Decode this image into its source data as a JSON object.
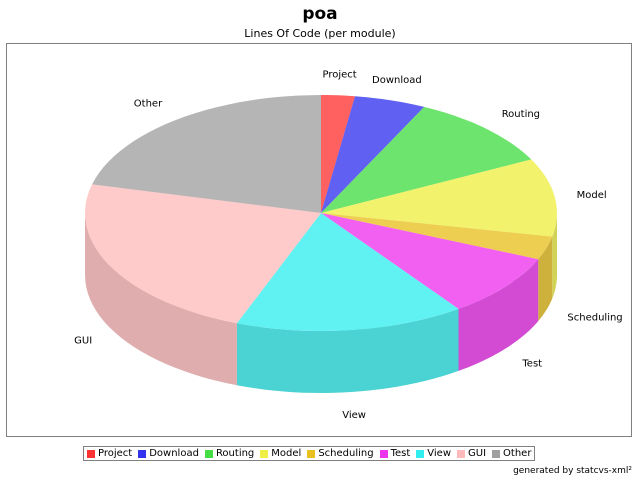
{
  "chart_data": {
    "type": "pie",
    "title": "poa",
    "subtitle": "Lines Of Code (per module)",
    "style": "3d",
    "legend_position": "bottom",
    "slices": [
      {
        "label": "Project",
        "value": 2.3,
        "color": "#ff3333"
      },
      {
        "label": "Download",
        "value": 4.9,
        "color": "#3333ee"
      },
      {
        "label": "Routing",
        "value": 10.3,
        "color": "#44dd44"
      },
      {
        "label": "Model",
        "value": 10.7,
        "color": "#eeee44"
      },
      {
        "label": "Scheduling",
        "value": 3.2,
        "color": "#e8c020"
      },
      {
        "label": "Test",
        "value": 8.7,
        "color": "#ee33ee"
      },
      {
        "label": "View",
        "value": 15.7,
        "color": "#33eeee"
      },
      {
        "label": "GUI",
        "value": 23.1,
        "color": "#ffbbbb"
      },
      {
        "label": "Other",
        "value": 21.1,
        "color": "#a0a0a0"
      }
    ]
  },
  "footer": {
    "credit": "generated by statcvs-xml²"
  }
}
